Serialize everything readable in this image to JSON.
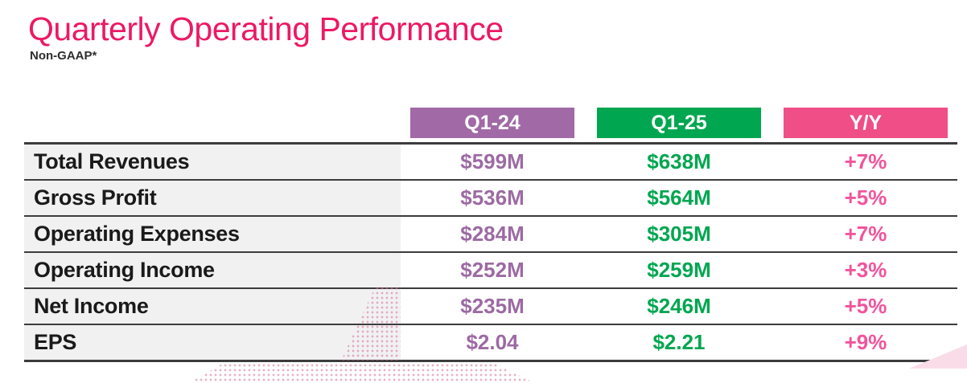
{
  "title": {
    "text": "Quarterly Operating Performance"
  },
  "subtitle": {
    "text": "Non-GAAP*"
  },
  "table": {
    "columns": [
      {
        "label": "Q1-24",
        "color": "#A169A6"
      },
      {
        "label": "Q1-25",
        "color": "#00A650"
      },
      {
        "label": "Y/Y",
        "color": "#EF4E87"
      }
    ],
    "rows": [
      {
        "label": "Total Revenues",
        "q1_24": "$599M",
        "q1_25": "$638M",
        "yoy": "+7%"
      },
      {
        "label": "Gross Profit",
        "q1_24": "$536M",
        "q1_25": "$564M",
        "yoy": "+5%"
      },
      {
        "label": "Operating Expenses",
        "q1_24": "$284M",
        "q1_25": "$305M",
        "yoy": "+7%"
      },
      {
        "label": "Operating Income",
        "q1_24": "$252M",
        "q1_25": "$259M",
        "yoy": "+3%"
      },
      {
        "label": "Net Income",
        "q1_24": "$235M",
        "q1_25": "$246M",
        "yoy": "+5%"
      },
      {
        "label": "EPS",
        "q1_24": "$2.04",
        "q1_25": "$2.21",
        "yoy": "+9%"
      }
    ]
  },
  "colors": {
    "title_pink": "#EC1964",
    "pill_purple": "#A169A6",
    "pill_green": "#00A650",
    "pill_pink": "#EF4E87",
    "value_purple": "#9C6AA3",
    "value_green": "#00A650",
    "value_pink": "#F2549B",
    "row_label_bg": "#F1F1F2",
    "rule_dark": "#3C3C3C",
    "subtitle_dark": "#2E2E2E",
    "label_text": "#1A1A1A",
    "dots_pink": "#D67096",
    "wedge_pink": "#F9DCE7"
  },
  "chart_data": {
    "type": "table",
    "title": "Quarterly Operating Performance",
    "subtitle": "Non-GAAP*",
    "columns": [
      "",
      "Q1-24",
      "Q1-25",
      "Y/Y"
    ],
    "rows": [
      [
        "Total Revenues",
        "$599M",
        "$638M",
        "+7%"
      ],
      [
        "Gross Profit",
        "$536M",
        "$564M",
        "+5%"
      ],
      [
        "Operating Expenses",
        "$284M",
        "$305M",
        "+7%"
      ],
      [
        "Operating Income",
        "$252M",
        "$259M",
        "+3%"
      ],
      [
        "Net Income",
        "$235M",
        "$246M",
        "+5%"
      ],
      [
        "EPS",
        "$2.04",
        "$2.21",
        "+9%"
      ]
    ]
  }
}
